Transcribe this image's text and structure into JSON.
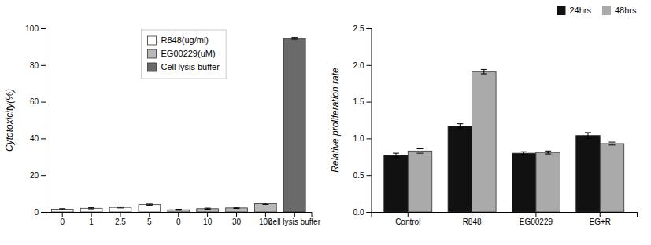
{
  "chart_data": [
    {
      "type": "bar",
      "ylabel": "Cytotoxicity(%)",
      "categories": [
        "0",
        "1",
        "2.5",
        "5",
        "0",
        "10",
        "30",
        "100",
        "cell lysis buffer"
      ],
      "series": [
        {
          "name": "R848(ug/ml)",
          "color": "#ffffff",
          "values": [
            1.5,
            2.0,
            2.5,
            4.0,
            null,
            null,
            null,
            null,
            null
          ],
          "errors": [
            0.3,
            0.3,
            0.3,
            0.3,
            null,
            null,
            null,
            null,
            null
          ]
        },
        {
          "name": "EG00229(uM)",
          "color": "#b8b8b8",
          "values": [
            null,
            null,
            null,
            null,
            1.2,
            1.8,
            2.2,
            4.5,
            null
          ],
          "errors": [
            null,
            null,
            null,
            null,
            0.3,
            0.3,
            0.3,
            0.4,
            null
          ]
        },
        {
          "name": "Cell lysis buffer",
          "color": "#6a6a6a",
          "values": [
            null,
            null,
            null,
            null,
            null,
            null,
            null,
            null,
            94.5
          ],
          "errors": [
            null,
            null,
            null,
            null,
            null,
            null,
            null,
            null,
            0.5
          ]
        }
      ],
      "ylim": [
        0,
        100
      ],
      "yticks": [
        0,
        20,
        40,
        60,
        80,
        100
      ],
      "grid": false,
      "legend": "upper center"
    },
    {
      "type": "bar",
      "ylabel": "Relative proliferation rate",
      "categories": [
        "Control",
        "R848",
        "EG00229",
        "EG+R"
      ],
      "series": [
        {
          "name": "24hrs",
          "color": "#111111",
          "values": [
            0.77,
            1.17,
            0.8,
            1.04
          ],
          "errors": [
            0.03,
            0.03,
            0.02,
            0.04
          ]
        },
        {
          "name": "48hrs",
          "color": "#aaaaaa",
          "values": [
            0.83,
            1.91,
            0.81,
            0.93
          ],
          "errors": [
            0.03,
            0.03,
            0.02,
            0.02
          ]
        }
      ],
      "ylim": [
        0.0,
        2.5
      ],
      "yticks": [
        {
          "value": 0.0,
          "label": "0.0"
        },
        0.5,
        {
          "value": 1.0,
          "label": "1.0"
        },
        1.5,
        {
          "value": 2.0,
          "label": "2.0"
        },
        2.5
      ],
      "grid": false,
      "legend": "top right"
    }
  ]
}
